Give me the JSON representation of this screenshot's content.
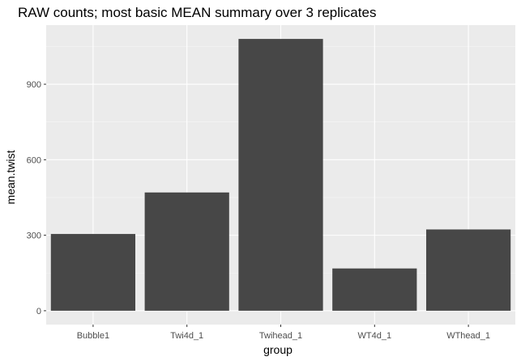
{
  "chart_data": {
    "type": "bar",
    "title": "RAW counts; most basic MEAN summary over 3 replicates",
    "xlabel": "group",
    "ylabel": "mean.twist",
    "categories": [
      "Bubble1",
      "Twi4d_1",
      "Twihead_1",
      "WT4d_1",
      "WThead_1"
    ],
    "values": [
      305,
      470,
      1080,
      168,
      323
    ],
    "yticks": [
      0,
      300,
      600,
      900
    ],
    "ylim": [
      -55,
      1135
    ],
    "grid": true,
    "colors": {
      "bar": "#474747",
      "panel": "#ebebeb",
      "grid_major": "#ffffff",
      "grid_minor": "#f5f5f5"
    }
  }
}
